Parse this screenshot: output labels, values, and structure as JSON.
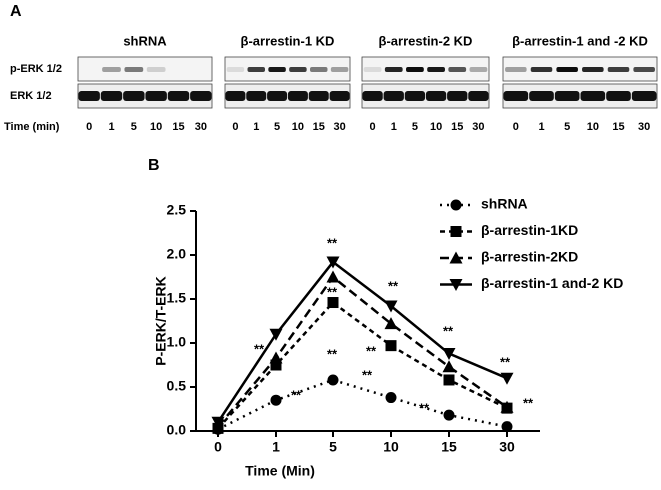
{
  "panel_a": {
    "label": "A",
    "row_labels": [
      "p-ERK 1/2",
      "ERK 1/2"
    ],
    "time_label": "Time (min)",
    "groups": [
      {
        "title": "shRNA",
        "times": [
          "0",
          "1",
          "5",
          "10",
          "15",
          "30"
        ]
      },
      {
        "title": "β-arrestin-1 KD",
        "times": [
          "0",
          "1",
          "5",
          "10",
          "15",
          "30"
        ]
      },
      {
        "title": "β-arrestin-2 KD",
        "times": [
          "0",
          "1",
          "5",
          "10",
          "15",
          "30"
        ]
      },
      {
        "title": "β-arrestin-1 and -2 KD",
        "times": [
          "0",
          "1",
          "5",
          "10",
          "15",
          "30"
        ]
      }
    ]
  },
  "panel_b_label": "B",
  "chart_data": {
    "type": "line",
    "x_label": "Time (Min)",
    "y_label": "P-ERK/T-ERK",
    "categories": [
      "0",
      "1",
      "5",
      "10",
      "15",
      "30"
    ],
    "ylim": [
      0,
      2.5
    ],
    "yticks": [
      {
        "value": 0,
        "label": "0.0"
      },
      0.5,
      {
        "value": 1,
        "label": "1.0"
      },
      1.5,
      {
        "value": 2,
        "label": "2.0"
      },
      2.5
    ],
    "series": [
      {
        "name": "shRNA",
        "color": "#000000",
        "dash": "dotted",
        "marker": "circle",
        "values": [
          0.02,
          0.35,
          0.58,
          0.38,
          0.18,
          0.05
        ]
      },
      {
        "name": "β-arrestin-1KD",
        "color": "#000000",
        "dash": "dash-dot",
        "marker": "square",
        "values": [
          0.03,
          0.75,
          1.46,
          0.97,
          0.58,
          0.26
        ]
      },
      {
        "name": "β-arrestin-2KD",
        "color": "#000000",
        "dash": "dashed",
        "marker": "triangle-up",
        "values": [
          0.05,
          0.83,
          1.75,
          1.22,
          0.73,
          0.27
        ]
      },
      {
        "name": "β-arrestin-1 and-2 KD",
        "color": "#000000",
        "dash": "solid",
        "marker": "triangle-down",
        "values": [
          0.1,
          1.1,
          1.92,
          1.42,
          0.88,
          0.6
        ]
      }
    ],
    "annotations": [
      "**",
      "**",
      "**",
      "**",
      "**",
      "**",
      "**",
      "**",
      "**",
      "**",
      "**",
      "**"
    ]
  }
}
